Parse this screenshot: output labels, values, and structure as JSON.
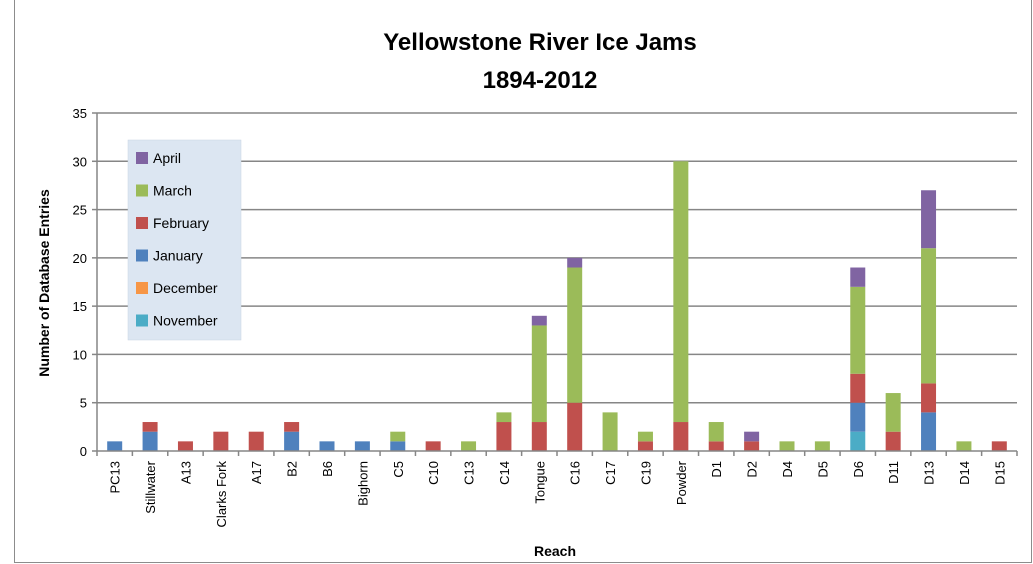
{
  "chart_data": {
    "type": "bar",
    "stacked": true,
    "title": "Yellowstone River Ice Jams",
    "subtitle": "1894-2012",
    "xlabel": "Reach",
    "ylabel": "Number of Database Entries",
    "ylim": [
      0,
      35
    ],
    "yticks": [
      0,
      5,
      10,
      15,
      20,
      25,
      30,
      35
    ],
    "grid": true,
    "legend_position": "top-left",
    "categories": [
      "PC13",
      "Stillwater",
      "A13",
      "Clarks Fork",
      "A17",
      "B2",
      "B6",
      "Bighorn",
      "C5",
      "C10",
      "C13",
      "C14",
      "Tongue",
      "C16",
      "C17",
      "C19",
      "Powder",
      "D1",
      "D2",
      "D4",
      "D5",
      "D6",
      "D11",
      "D13",
      "D14",
      "D15"
    ],
    "series": [
      {
        "name": "November",
        "color": "#4bacc6",
        "values": [
          0,
          0,
          0,
          0,
          0,
          0,
          0,
          0,
          0,
          0,
          0,
          0,
          0,
          0,
          0,
          0,
          0,
          0,
          0,
          0,
          0,
          2,
          0,
          0,
          0,
          0
        ]
      },
      {
        "name": "December",
        "color": "#f79646",
        "values": [
          0,
          0,
          0,
          0,
          0,
          0,
          0,
          0,
          0,
          0,
          0,
          0,
          0,
          0,
          0,
          0,
          0,
          0,
          0,
          0,
          0,
          0,
          0,
          0,
          0,
          0
        ]
      },
      {
        "name": "January",
        "color": "#4f81bd",
        "values": [
          1,
          2,
          0,
          0,
          0,
          2,
          1,
          1,
          1,
          0,
          0,
          0,
          0,
          0,
          0,
          0,
          0,
          0,
          0,
          0,
          0,
          3,
          0,
          4,
          0,
          0
        ]
      },
      {
        "name": "February",
        "color": "#c0504d",
        "values": [
          0,
          1,
          1,
          2,
          2,
          1,
          0,
          0,
          0,
          1,
          0,
          3,
          3,
          5,
          0,
          1,
          3,
          1,
          1,
          0,
          0,
          3,
          2,
          3,
          0,
          1
        ]
      },
      {
        "name": "March",
        "color": "#9bbb59",
        "values": [
          0,
          0,
          0,
          0,
          0,
          0,
          0,
          0,
          1,
          0,
          1,
          1,
          10,
          14,
          4,
          1,
          27,
          2,
          0,
          1,
          1,
          9,
          4,
          14,
          1,
          0
        ]
      },
      {
        "name": "April",
        "color": "#8064a2",
        "values": [
          0,
          0,
          0,
          0,
          0,
          0,
          0,
          0,
          0,
          0,
          0,
          0,
          1,
          1,
          0,
          0,
          0,
          0,
          1,
          0,
          0,
          2,
          0,
          6,
          0,
          0
        ]
      }
    ]
  }
}
